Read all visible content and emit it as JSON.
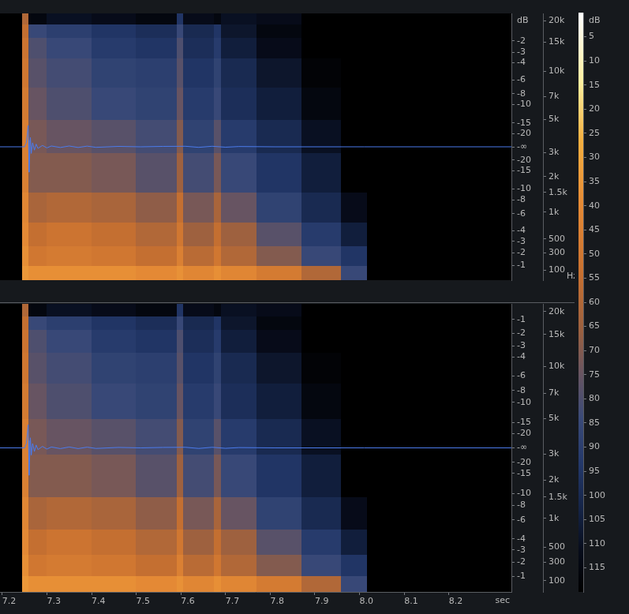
{
  "chart_data": {
    "type": "heatmap",
    "x_label": "sec",
    "xlim": [
      7.195,
      8.34
    ],
    "xticks": [
      7.2,
      7.3,
      7.4,
      7.5,
      7.6,
      7.7,
      7.8,
      7.9,
      {
        "value": 8,
        "label": "8.0"
      },
      8.1,
      8.2
    ],
    "ylim": [
      0,
      22050
    ],
    "yticks": [
      {
        "value": 20000,
        "label": "20k"
      },
      {
        "value": 15000,
        "label": "15k"
      },
      {
        "value": 10000,
        "label": "10k"
      },
      {
        "value": 7000,
        "label": "7k"
      },
      {
        "value": 5000,
        "label": "5k"
      },
      {
        "value": 3000,
        "label": "3k"
      },
      {
        "value": 2000,
        "label": "2k"
      },
      {
        "value": 1500,
        "label": "1.5k"
      },
      {
        "value": 1000,
        "label": "1k"
      },
      500,
      300,
      100
    ],
    "y2lim": [
      -1,
      1
    ],
    "grid": false,
    "time_edges": [
      7.245,
      7.26,
      7.3,
      7.4,
      7.5,
      7.592,
      7.605,
      7.675,
      7.69,
      7.77,
      7.87,
      7.96,
      8.015
    ],
    "frequency_edges": [
      0,
      150,
      400,
      800,
      1500,
      3000,
      5000,
      8000,
      12000,
      16000,
      19000,
      22050
    ],
    "colorbar": {
      "label": "dB",
      "range": [
        0,
        120
      ],
      "ticks": [
        5,
        10,
        15,
        20,
        25,
        30,
        35,
        40,
        45,
        50,
        55,
        60,
        65,
        70,
        75,
        80,
        85,
        90,
        95,
        100,
        105,
        110,
        115
      ]
    },
    "panels": [
      {
        "y_label": "Hz",
        "y2_label": "dB",
        "y2ticks": [
          {
            "value": 0.794,
            "label": "-2"
          },
          {
            "value": 0.708,
            "label": "-3"
          },
          {
            "value": 0.631,
            "label": "-4"
          },
          {
            "value": 0.501,
            "label": "-6"
          },
          {
            "value": 0.398,
            "label": "-8"
          },
          {
            "value": 0.316,
            "label": "-10"
          },
          {
            "value": 0.178,
            "label": "-15"
          },
          {
            "value": 0.1,
            "label": "-20"
          },
          {
            "value": 0,
            "label": "-∞"
          },
          {
            "value": -0.1,
            "label": "-20"
          },
          {
            "value": -0.178,
            "label": "-15"
          },
          {
            "value": -0.316,
            "label": "-10"
          },
          {
            "value": -0.398,
            "label": "-8"
          },
          {
            "value": -0.501,
            "label": "-6"
          },
          {
            "value": -0.631,
            "label": "-4"
          },
          {
            "value": -0.708,
            "label": "-3"
          },
          {
            "value": -0.794,
            "label": "-2"
          },
          {
            "value": -0.891,
            "label": "-1"
          }
        ],
        "cells": [
          [
            35,
            38,
            38,
            38,
            40,
            37,
            42,
            38,
            42,
            48,
            60,
            85
          ],
          [
            38,
            50,
            48,
            50,
            55,
            45,
            58,
            50,
            60,
            70,
            85,
            95
          ],
          [
            40,
            55,
            52,
            55,
            60,
            50,
            65,
            55,
            65,
            78,
            92,
            105
          ],
          [
            42,
            62,
            60,
            62,
            68,
            55,
            72,
            62,
            75,
            88,
            100,
            112
          ],
          [
            45,
            70,
            70,
            72,
            78,
            65,
            82,
            72,
            85,
            95,
            105,
            120
          ],
          [
            45,
            72,
            75,
            78,
            82,
            70,
            88,
            78,
            92,
            100,
            110,
            120
          ],
          [
            48,
            75,
            80,
            85,
            88,
            75,
            92,
            85,
            98,
            105,
            115,
            120
          ],
          [
            50,
            78,
            82,
            88,
            90,
            78,
            95,
            88,
            100,
            108,
            118,
            120
          ],
          [
            52,
            80,
            85,
            92,
            95,
            80,
            98,
            92,
            105,
            112,
            120,
            120
          ],
          [
            55,
            85,
            90,
            95,
            98,
            85,
            100,
            95,
            108,
            115,
            120,
            120
          ],
          [
            60,
            115,
            110,
            112,
            115,
            95,
            112,
            115,
            110,
            112,
            120,
            120
          ]
        ],
        "series": [
          {
            "type": "line",
            "color": "#4b7bec",
            "axis": "y2",
            "x": [
              7.195,
              7.25,
              7.254,
              7.256,
              7.258,
              7.259,
              7.26,
              7.261,
              7.263,
              7.265,
              7.268,
              7.272,
              7.276,
              7.28,
              7.29,
              7.3,
              7.31,
              7.33,
              7.35,
              7.37,
              7.39,
              7.41,
              7.46,
              7.51,
              7.56,
              7.61,
              7.64,
              7.67,
              7.7,
              7.73,
              7.81,
              8.01,
              8.34
            ],
            "values": [
              0,
              0,
              0.03,
              0.09,
              0.16,
              0.05,
              -0.19,
              -0.1,
              0.07,
              -0.05,
              0.03,
              -0.025,
              0.02,
              -0.012,
              0.01,
              -0.008,
              0.006,
              -0.005,
              0.006,
              -0.005,
              0.005,
              -0.004,
              0.003,
              0,
              0.003,
              0.004,
              -0.004,
              0.004,
              -0.003,
              0.002,
              0,
              0,
              0
            ]
          }
        ]
      },
      {
        "y2ticks": [
          {
            "value": 0.891,
            "label": "-1"
          },
          {
            "value": 0.794,
            "label": "-2"
          },
          {
            "value": 0.708,
            "label": "-3"
          },
          {
            "value": 0.631,
            "label": "-4"
          },
          {
            "value": 0.501,
            "label": "-6"
          },
          {
            "value": 0.398,
            "label": "-8"
          },
          {
            "value": 0.316,
            "label": "-10"
          },
          {
            "value": 0.178,
            "label": "-15"
          },
          {
            "value": 0.1,
            "label": "-20"
          },
          {
            "value": 0,
            "label": "-∞"
          },
          {
            "value": -0.1,
            "label": "-20"
          },
          {
            "value": -0.178,
            "label": "-15"
          },
          {
            "value": -0.316,
            "label": "-10"
          },
          {
            "value": -0.398,
            "label": "-8"
          },
          {
            "value": -0.501,
            "label": "-6"
          },
          {
            "value": -0.631,
            "label": "-4"
          },
          {
            "value": -0.708,
            "label": "-3"
          },
          {
            "value": -0.794,
            "label": "-2"
          },
          {
            "value": -0.891,
            "label": "-1"
          }
        ],
        "cells": [
          [
            35,
            38,
            38,
            38,
            40,
            37,
            42,
            38,
            42,
            48,
            60,
            85
          ],
          [
            38,
            50,
            48,
            50,
            55,
            45,
            58,
            50,
            60,
            70,
            85,
            95
          ],
          [
            40,
            55,
            52,
            55,
            60,
            50,
            65,
            55,
            65,
            78,
            92,
            105
          ],
          [
            42,
            62,
            60,
            62,
            68,
            55,
            72,
            62,
            75,
            88,
            100,
            112
          ],
          [
            45,
            70,
            70,
            72,
            78,
            65,
            82,
            72,
            85,
            95,
            105,
            120
          ],
          [
            45,
            72,
            75,
            78,
            82,
            70,
            88,
            78,
            92,
            100,
            110,
            120
          ],
          [
            48,
            75,
            80,
            85,
            88,
            75,
            92,
            85,
            98,
            105,
            115,
            120
          ],
          [
            50,
            78,
            82,
            88,
            90,
            78,
            95,
            88,
            100,
            108,
            118,
            120
          ],
          [
            52,
            80,
            85,
            92,
            95,
            80,
            98,
            92,
            105,
            112,
            120,
            120
          ],
          [
            55,
            85,
            90,
            95,
            98,
            85,
            100,
            95,
            108,
            115,
            120,
            120
          ],
          [
            60,
            115,
            110,
            112,
            115,
            95,
            112,
            115,
            110,
            112,
            120,
            120
          ]
        ],
        "series": [
          {
            "type": "line",
            "color": "#4b7bec",
            "axis": "y2",
            "x": [
              7.195,
              7.25,
              7.254,
              7.256,
              7.258,
              7.259,
              7.26,
              7.261,
              7.263,
              7.265,
              7.268,
              7.272,
              7.276,
              7.28,
              7.29,
              7.3,
              7.31,
              7.33,
              7.35,
              7.37,
              7.39,
              7.41,
              7.46,
              7.51,
              7.56,
              7.61,
              7.64,
              7.67,
              7.7,
              7.73,
              7.81,
              8.01,
              8.34
            ],
            "values": [
              0,
              0,
              0.03,
              0.09,
              0.16,
              0.05,
              -0.19,
              -0.1,
              0.07,
              -0.05,
              0.03,
              -0.025,
              0.02,
              -0.012,
              0.01,
              -0.008,
              0.006,
              -0.005,
              0.006,
              -0.005,
              0.005,
              -0.004,
              0.003,
              0,
              0.003,
              0.004,
              -0.004,
              0.004,
              -0.003,
              0.002,
              0,
              0,
              0
            ]
          }
        ]
      }
    ]
  }
}
